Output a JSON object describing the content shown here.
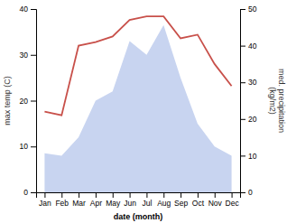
{
  "chart_data": {
    "type": "area",
    "categories": [
      "Jan",
      "Feb",
      "Mar",
      "Apr",
      "May",
      "Jun",
      "Jul",
      "Aug",
      "Sep",
      "Oct",
      "Nov",
      "Dec"
    ],
    "series": [
      {
        "type": "area",
        "color": "#c8d4f0",
        "values": [
          8.5,
          8.0,
          12.0,
          20.0,
          22.0,
          33.0,
          30.0,
          36.5,
          25.0,
          15.0,
          10.0,
          8.0
        ]
      },
      {
        "type": "line",
        "color": "#c8504a",
        "axis": "y2",
        "values": [
          22.0,
          21.0,
          40.0,
          41.0,
          42.5,
          47.0,
          48.0,
          48.0,
          42.0,
          43.0,
          35.0,
          29.0
        ]
      }
    ],
    "x_label": "date (month)",
    "y_label": "max temp (C)",
    "y2_label": "med. precipitation\n(kg/m2)",
    "ylim": [
      0,
      40
    ],
    "yticks": [
      0,
      10,
      20,
      30,
      40
    ],
    "y2lim": [
      0,
      50
    ],
    "y2ticks": [
      0,
      10,
      20,
      30,
      40,
      50
    ]
  }
}
